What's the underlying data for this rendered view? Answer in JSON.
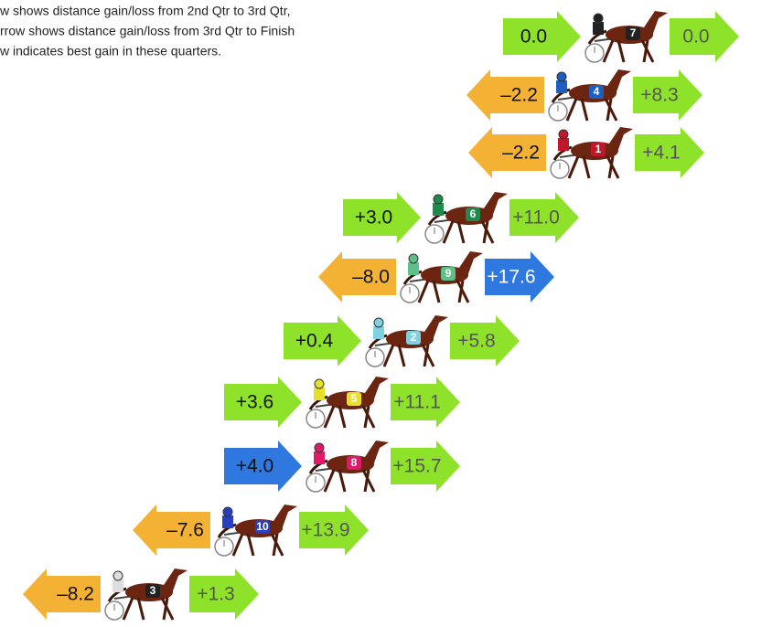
{
  "legend": [
    "w shows distance gain/loss from 2nd Qtr to 3rd Qtr,",
    "rrow shows distance gain/loss from 3rd Qtr to Finish",
    "w indicates best gain in these quarters."
  ],
  "rows": [
    {
      "number": "7",
      "left": "0.0",
      "right": "0.0",
      "left_color": "#8fe22a",
      "right_color": "#8fe22a"
    },
    {
      "number": "4",
      "left": "–2.2",
      "right": "+8.3",
      "left_color": "#f4b235",
      "right_color": "#8fe22a"
    },
    {
      "number": "1",
      "left": "–2.2",
      "right": "+4.1",
      "left_color": "#f4b235",
      "right_color": "#8fe22a"
    },
    {
      "number": "6",
      "left": "+3.0",
      "right": "+11.0",
      "left_color": "#8fe22a",
      "right_color": "#8fe22a"
    },
    {
      "number": "9",
      "left": "–8.0",
      "right": "+17.6",
      "left_color": "#f4b235",
      "right_color": "#2f78e0"
    },
    {
      "number": "2",
      "left": "+0.4",
      "right": "+5.8",
      "left_color": "#8fe22a",
      "right_color": "#8fe22a"
    },
    {
      "number": "5",
      "left": "+3.6",
      "right": "+11.1",
      "left_color": "#8fe22a",
      "right_color": "#8fe22a"
    },
    {
      "number": "8",
      "left": "+4.0",
      "right": "+15.7",
      "left_color": "#2f78e0",
      "right_color": "#8fe22a"
    },
    {
      "number": "10",
      "left": "–7.6",
      "right": "+13.9",
      "left_color": "#f4b235",
      "right_color": "#8fe22a"
    },
    {
      "number": "3",
      "left": "–8.2",
      "right": "+1.3",
      "left_color": "#f4b235",
      "right_color": "#8fe22a"
    }
  ]
}
